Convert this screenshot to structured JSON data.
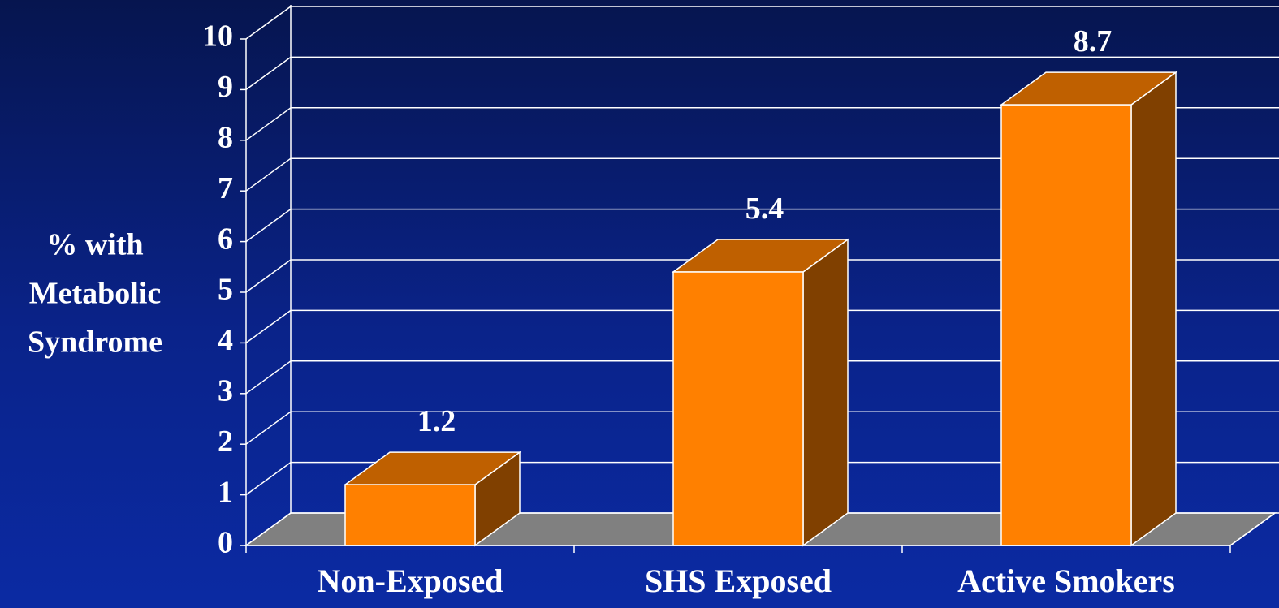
{
  "chart_data": {
    "type": "bar3d",
    "ylabel": [
      "% with",
      "Metabolic",
      "Syndrome"
    ],
    "categories": [
      "Non-Exposed",
      "SHS Exposed",
      "Active Smokers"
    ],
    "values": [
      1.2,
      5.4,
      8.7
    ],
    "color": "#ff8000",
    "ylim": [
      0,
      10
    ],
    "yticks": [
      0,
      1,
      2,
      3,
      4,
      5,
      6,
      7,
      8,
      9,
      10
    ],
    "grid": true
  }
}
